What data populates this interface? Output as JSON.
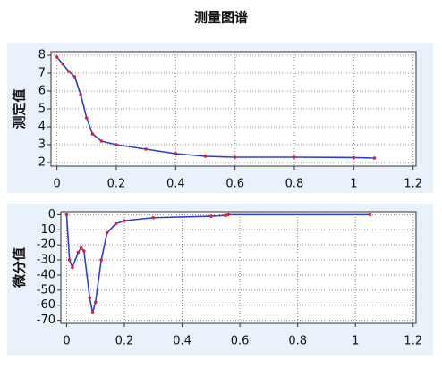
{
  "title": "测量图谱",
  "chart_data": [
    {
      "type": "line",
      "ylabel": "测定值",
      "xlim": [
        -0.02,
        1.21
      ],
      "ylim": [
        1.8,
        8.2
      ],
      "xticks": [
        0,
        0.2,
        0.4,
        0.6,
        0.8,
        1,
        1.2
      ],
      "yticks": [
        2,
        3,
        4,
        5,
        6,
        7,
        8
      ],
      "grid": true,
      "series": [
        {
          "color": "#2b3fd6",
          "marker_color": "#e0202a",
          "x": [
            0,
            0.02,
            0.04,
            0.06,
            0.08,
            0.1,
            0.12,
            0.15,
            0.2,
            0.3,
            0.4,
            0.5,
            0.6,
            0.8,
            1.0,
            1.07
          ],
          "values": [
            7.9,
            7.5,
            7.1,
            6.8,
            5.8,
            4.5,
            3.6,
            3.2,
            3.0,
            2.75,
            2.5,
            2.35,
            2.3,
            2.3,
            2.28,
            2.25
          ]
        }
      ]
    },
    {
      "type": "line",
      "ylabel": "微分值",
      "xlim": [
        -0.02,
        1.21
      ],
      "ylim": [
        -72,
        2
      ],
      "xticks": [
        0,
        0.2,
        0.4,
        0.6,
        0.8,
        1,
        1.2
      ],
      "yticks": [
        0,
        -10,
        -20,
        -30,
        -40,
        -50,
        -60,
        -70
      ],
      "grid": true,
      "series": [
        {
          "color": "#2b3fd6",
          "marker_color": "#e0202a",
          "x": [
            0,
            0.01,
            0.02,
            0.04,
            0.05,
            0.06,
            0.08,
            0.09,
            0.1,
            0.12,
            0.14,
            0.17,
            0.2,
            0.3,
            0.5,
            0.55,
            0.56,
            1.05
          ],
          "values": [
            0,
            -30,
            -35,
            -25,
            -22,
            -24,
            -55,
            -65,
            -58,
            -30,
            -12,
            -6,
            -4,
            -2,
            -1,
            -0.5,
            0,
            0
          ]
        }
      ]
    }
  ]
}
